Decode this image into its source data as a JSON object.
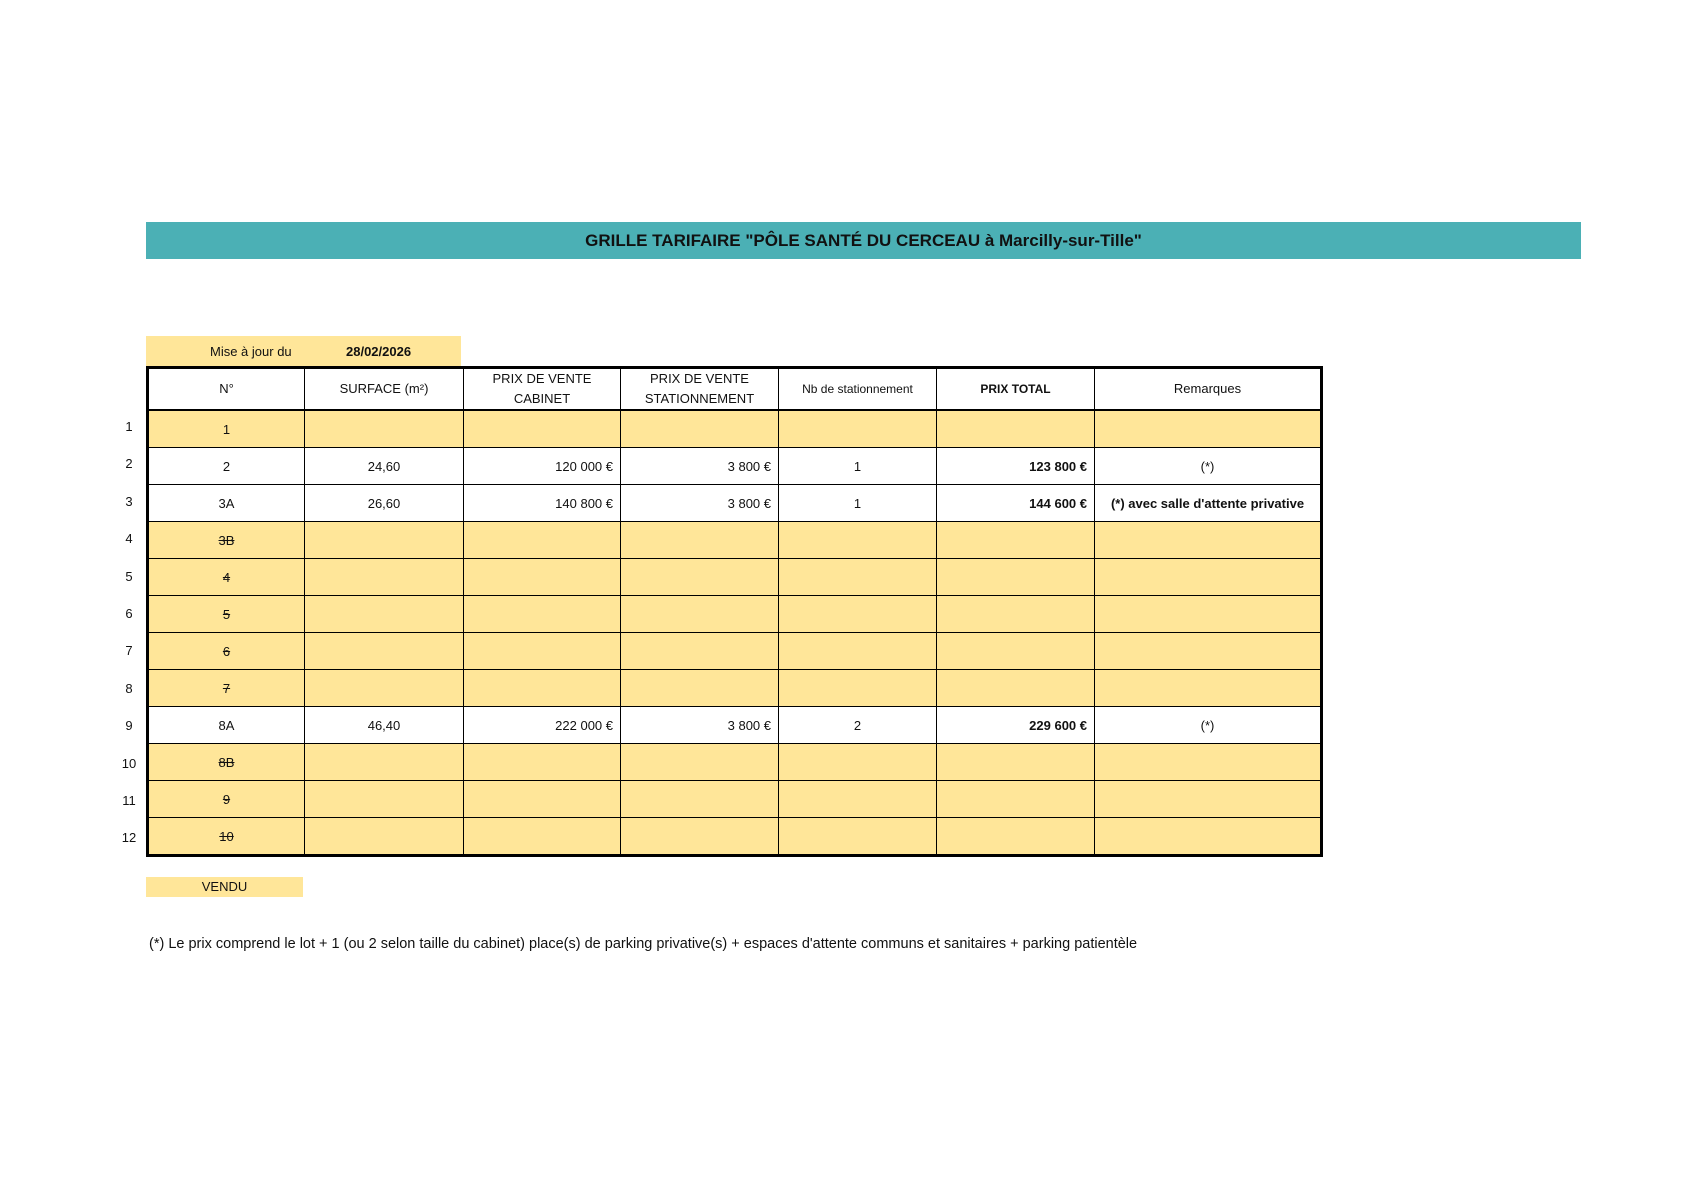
{
  "title": "GRILLE TARIFAIRE \"PÔLE SANTÉ DU CERCEAU à Marcilly-sur-Tille\"",
  "update": {
    "label": "Mise à jour du",
    "date": "28/02/2026"
  },
  "colors": {
    "header_bar": "#4bb0b5",
    "sold": "#ffe699"
  },
  "table": {
    "headers": [
      "N°",
      "SURFACE (m²)",
      "PRIX DE VENTE CABINET",
      "PRIX DE VENTE STATIONNEMENT",
      "Nb de stationnement",
      "PRIX TOTAL",
      "Remarques"
    ],
    "rows": [
      {
        "row": "1",
        "n": "1",
        "sold": true,
        "struck": false,
        "surface": "",
        "cabinet": "",
        "parking": "",
        "nb": "",
        "total": "",
        "remarks": ""
      },
      {
        "row": "2",
        "n": "2",
        "sold": false,
        "struck": false,
        "surface": "24,60",
        "cabinet": "120 000 €",
        "parking": "3 800 €",
        "nb": "1",
        "total": "123 800 €",
        "remarks": "(*)"
      },
      {
        "row": "3",
        "n": "3A",
        "sold": false,
        "struck": false,
        "surface": "26,60",
        "cabinet": "140 800 €",
        "parking": "3 800 €",
        "nb": "1",
        "total": "144 600 €",
        "remarks": "(*) avec salle d'attente privative",
        "remarks_bold": true
      },
      {
        "row": "4",
        "n": "3B",
        "sold": true,
        "struck": true,
        "surface": "",
        "cabinet": "",
        "parking": "",
        "nb": "",
        "total": "",
        "remarks": ""
      },
      {
        "row": "5",
        "n": "4",
        "sold": true,
        "struck": true,
        "surface": "",
        "cabinet": "",
        "parking": "",
        "nb": "",
        "total": "",
        "remarks": ""
      },
      {
        "row": "6",
        "n": "5",
        "sold": true,
        "struck": true,
        "surface": "",
        "cabinet": "",
        "parking": "",
        "nb": "",
        "total": "",
        "remarks": ""
      },
      {
        "row": "7",
        "n": "6",
        "sold": true,
        "struck": true,
        "surface": "",
        "cabinet": "",
        "parking": "",
        "nb": "",
        "total": "",
        "remarks": ""
      },
      {
        "row": "8",
        "n": "7",
        "sold": true,
        "struck": true,
        "surface": "",
        "cabinet": "",
        "parking": "",
        "nb": "",
        "total": "",
        "remarks": ""
      },
      {
        "row": "9",
        "n": "8A",
        "sold": false,
        "struck": false,
        "surface": "46,40",
        "cabinet": "222 000 €",
        "parking": "3 800 €",
        "nb": "2",
        "total": "229 600 €",
        "remarks": "(*)"
      },
      {
        "row": "10",
        "n": "8B",
        "sold": true,
        "struck": true,
        "surface": "",
        "cabinet": "",
        "parking": "",
        "nb": "",
        "total": "",
        "remarks": ""
      },
      {
        "row": "11",
        "n": "9",
        "sold": true,
        "struck": true,
        "surface": "",
        "cabinet": "",
        "parking": "",
        "nb": "",
        "total": "",
        "remarks": ""
      },
      {
        "row": "12",
        "n": "10",
        "sold": true,
        "struck": true,
        "surface": "",
        "cabinet": "",
        "parking": "",
        "nb": "",
        "total": "",
        "remarks": ""
      }
    ]
  },
  "legend": {
    "sold_label": "VENDU"
  },
  "footnote": "(*) Le prix comprend le lot  + 1 (ou 2 selon taille du cabinet) place(s) de parking privative(s) + espaces d'attente communs et sanitaires + parking patientèle"
}
